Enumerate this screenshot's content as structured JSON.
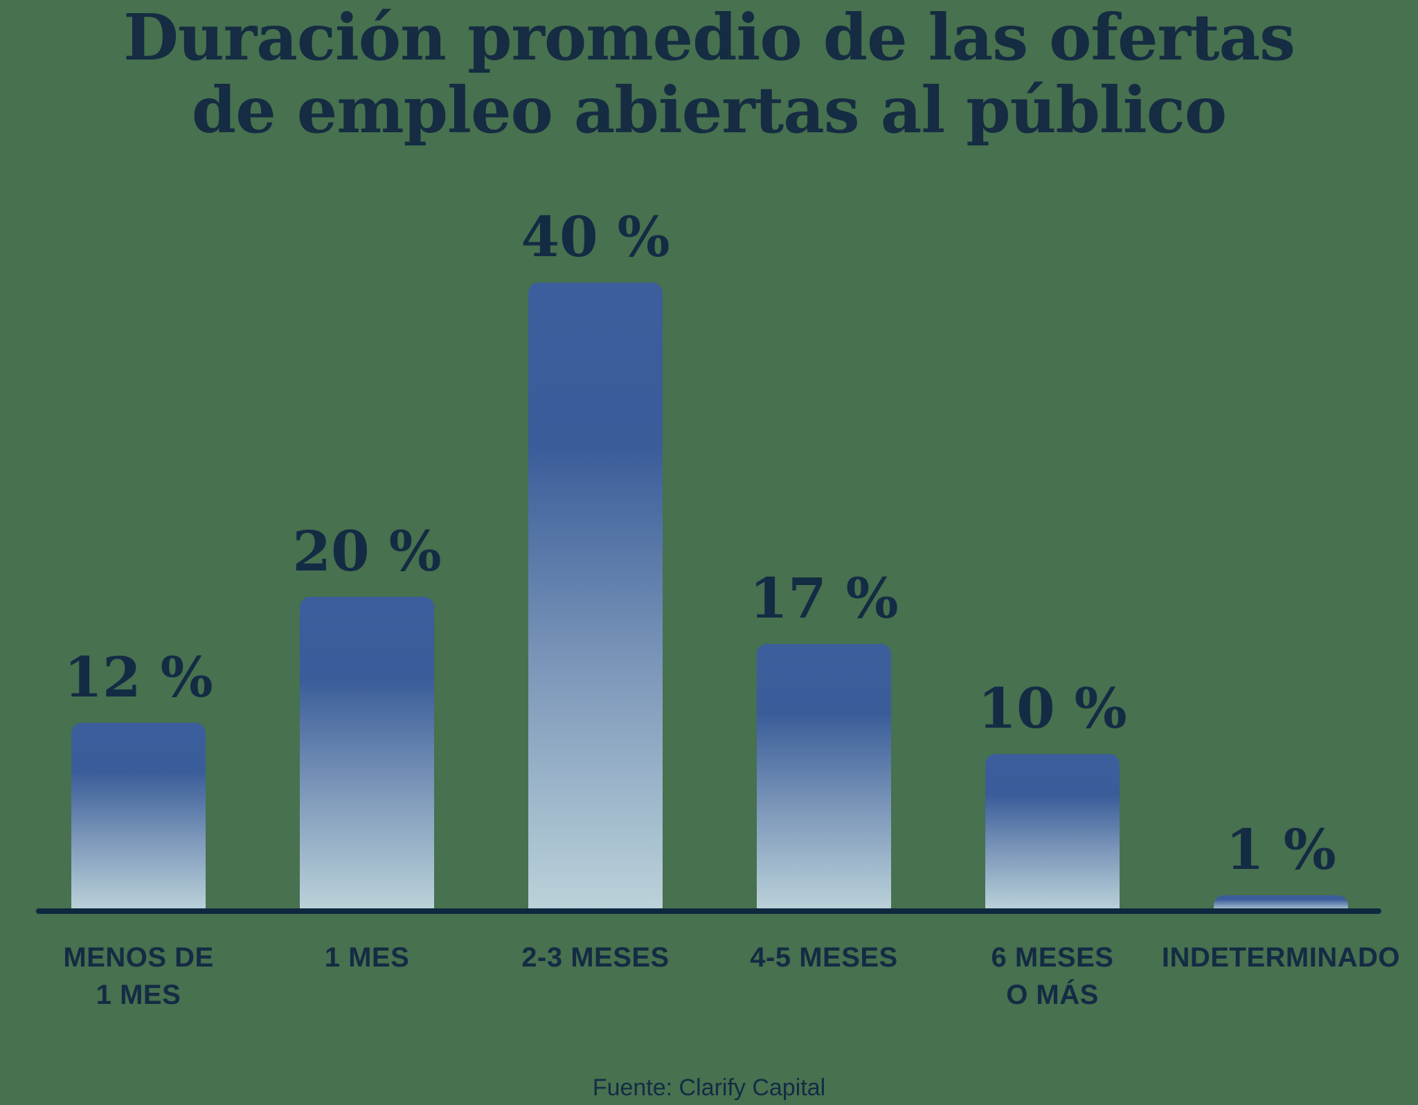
{
  "chart_data": {
    "type": "bar",
    "title": "Duración promedio de las ofertas\nde empleo abiertas al público",
    "categories": [
      "MENOS DE\n1 MES",
      "1 MES",
      "2-3 MESES",
      "4-5 MESES",
      "6 MESES\nO MÁS",
      "INDETERMINADO"
    ],
    "values": [
      12,
      20,
      40,
      17,
      10,
      1
    ],
    "value_labels": [
      "12 %",
      "20 %",
      "40 %",
      "17 %",
      "10 %",
      "1 %"
    ],
    "unit": "%",
    "xlabel": "",
    "ylabel": "",
    "ylim": [
      0,
      44
    ],
    "grid": false,
    "legend": false,
    "source": "Fuente: Clarify Capital",
    "colors": {
      "background": "#47714F",
      "text": "#142B44",
      "axis_line": "#0F2840",
      "bar_gradient_top": "#3C5E9C",
      "bar_gradient_bottom": "#BCD3DA"
    }
  }
}
